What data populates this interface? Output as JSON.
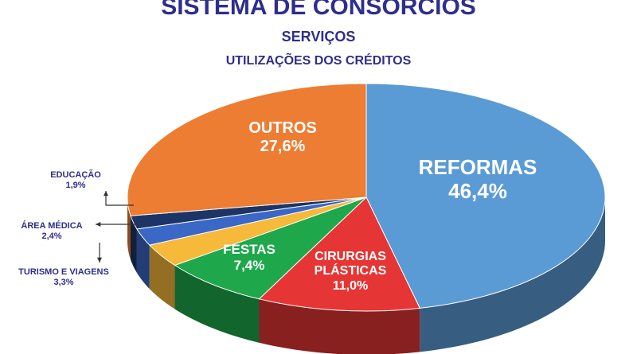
{
  "chart_data": {
    "type": "pie",
    "title": "SISTEMA DE CONSÓRCIOS",
    "subtitles": [
      "SERVIÇOS",
      "UTILIZAÇÕES DOS CRÉDITOS"
    ],
    "categories": [
      "REFORMAS",
      "CIRURGIAS PLÁSTICAS",
      "FESTAS",
      "TURISMO E VIAGENS",
      "ÁREA MÉDICA",
      "EDUCAÇÃO",
      "OUTROS"
    ],
    "values": [
      46.4,
      11.0,
      7.4,
      3.3,
      2.4,
      1.9,
      27.6
    ],
    "value_labels": [
      "46,4%",
      "11,0%",
      "7,4%",
      "3,3%",
      "2,4%",
      "1,9%",
      "27,6%"
    ],
    "colors": [
      "#5b9bd5",
      "#e53535",
      "#1ea84b",
      "#f6b93a",
      "#3b67c6",
      "#1d3566",
      "#ec7d32"
    ]
  }
}
